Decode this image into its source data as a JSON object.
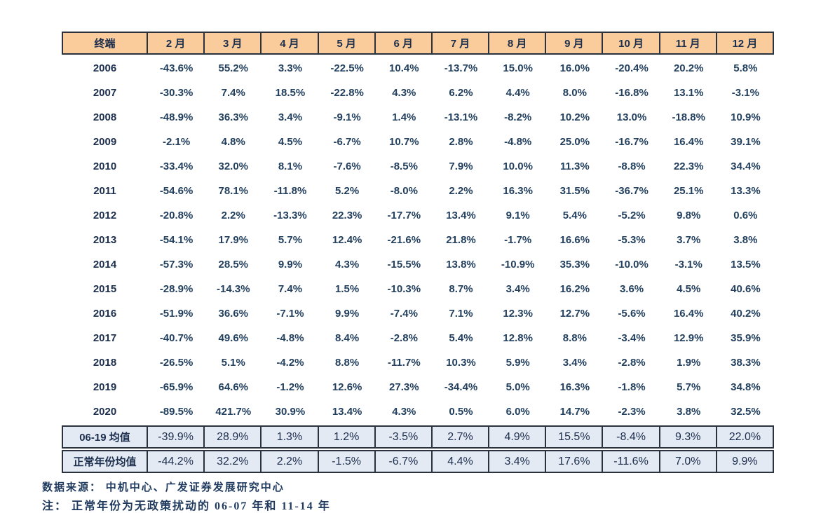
{
  "table": {
    "header": [
      "终端",
      "2 月",
      "3 月",
      "4 月",
      "5 月",
      "6 月",
      "7 月",
      "8 月",
      "9 月",
      "10 月",
      "11 月",
      "12 月"
    ],
    "rows": [
      {
        "label": "2006",
        "values": [
          "-43.6%",
          "55.2%",
          "3.3%",
          "-22.5%",
          "10.4%",
          "-13.7%",
          "15.0%",
          "16.0%",
          "-20.4%",
          "20.2%",
          "5.8%"
        ]
      },
      {
        "label": "2007",
        "values": [
          "-30.3%",
          "7.4%",
          "18.5%",
          "-22.8%",
          "4.3%",
          "6.2%",
          "4.4%",
          "8.0%",
          "-16.8%",
          "13.1%",
          "-3.1%"
        ]
      },
      {
        "label": "2008",
        "values": [
          "-48.9%",
          "36.3%",
          "3.4%",
          "-9.1%",
          "1.4%",
          "-13.1%",
          "-8.2%",
          "10.2%",
          "13.0%",
          "-18.8%",
          "10.9%"
        ]
      },
      {
        "label": "2009",
        "values": [
          "-2.1%",
          "4.8%",
          "4.5%",
          "-6.7%",
          "10.7%",
          "2.8%",
          "-4.8%",
          "25.0%",
          "-16.7%",
          "16.4%",
          "39.1%"
        ]
      },
      {
        "label": "2010",
        "values": [
          "-33.4%",
          "32.0%",
          "8.1%",
          "-7.6%",
          "-8.5%",
          "7.9%",
          "10.0%",
          "11.3%",
          "-8.8%",
          "22.3%",
          "34.4%"
        ]
      },
      {
        "label": "2011",
        "values": [
          "-54.6%",
          "78.1%",
          "-11.8%",
          "5.2%",
          "-8.0%",
          "2.2%",
          "16.3%",
          "31.5%",
          "-36.7%",
          "25.1%",
          "13.3%"
        ]
      },
      {
        "label": "2012",
        "values": [
          "-20.8%",
          "2.2%",
          "-13.3%",
          "22.3%",
          "-17.7%",
          "13.4%",
          "9.1%",
          "5.4%",
          "-5.2%",
          "9.8%",
          "0.6%"
        ]
      },
      {
        "label": "2013",
        "values": [
          "-54.1%",
          "17.9%",
          "5.7%",
          "12.4%",
          "-21.6%",
          "21.8%",
          "-1.7%",
          "16.6%",
          "-5.3%",
          "3.7%",
          "3.8%"
        ]
      },
      {
        "label": "2014",
        "values": [
          "-57.3%",
          "28.5%",
          "9.9%",
          "4.3%",
          "-15.5%",
          "13.8%",
          "-10.9%",
          "35.3%",
          "-10.0%",
          "-3.1%",
          "13.5%"
        ]
      },
      {
        "label": "2015",
        "values": [
          "-28.9%",
          "-14.3%",
          "7.4%",
          "1.5%",
          "-10.3%",
          "8.7%",
          "3.4%",
          "16.2%",
          "3.6%",
          "4.5%",
          "40.6%"
        ]
      },
      {
        "label": "2016",
        "values": [
          "-51.9%",
          "36.6%",
          "-7.1%",
          "9.9%",
          "-7.4%",
          "7.1%",
          "12.3%",
          "12.7%",
          "-5.6%",
          "16.4%",
          "40.2%"
        ]
      },
      {
        "label": "2017",
        "values": [
          "-40.7%",
          "49.6%",
          "-4.8%",
          "8.4%",
          "-2.8%",
          "5.4%",
          "12.8%",
          "8.8%",
          "-3.4%",
          "12.9%",
          "35.9%"
        ]
      },
      {
        "label": "2018",
        "values": [
          "-26.5%",
          "5.1%",
          "-4.2%",
          "8.8%",
          "-11.7%",
          "10.3%",
          "5.9%",
          "3.4%",
          "-2.8%",
          "1.9%",
          "38.3%"
        ]
      },
      {
        "label": "2019",
        "values": [
          "-65.9%",
          "64.6%",
          "-1.2%",
          "12.6%",
          "27.3%",
          "-34.4%",
          "5.0%",
          "16.3%",
          "-1.8%",
          "5.7%",
          "34.8%"
        ]
      },
      {
        "label": "2020",
        "values": [
          "-89.5%",
          "421.7%",
          "30.9%",
          "13.4%",
          "4.3%",
          "0.5%",
          "6.0%",
          "14.7%",
          "-2.3%",
          "3.8%",
          "32.5%"
        ]
      }
    ],
    "summary_rows": [
      {
        "label": "06-19 均值",
        "values": [
          "-39.9%",
          "28.9%",
          "1.3%",
          "1.2%",
          "-3.5%",
          "2.7%",
          "4.9%",
          "15.5%",
          "-8.4%",
          "9.3%",
          "22.0%"
        ]
      },
      {
        "label": "正常年份均值",
        "values": [
          "-44.2%",
          "32.2%",
          "2.2%",
          "-1.5%",
          "-6.7%",
          "4.4%",
          "3.4%",
          "17.6%",
          "-11.6%",
          "7.0%",
          "9.9%"
        ]
      }
    ]
  },
  "footer": {
    "source": "数据来源： 中机中心、广发证券发展研究中心",
    "note": "注：  正常年份为无政策扰动的 06-07 年和 11-14 年"
  },
  "colors": {
    "header_bg": "#facc9b",
    "summary_bg": "#e4eaf4",
    "border": "#2a323e",
    "value_text": "#23405f",
    "label_text": "#1c2e4d"
  }
}
